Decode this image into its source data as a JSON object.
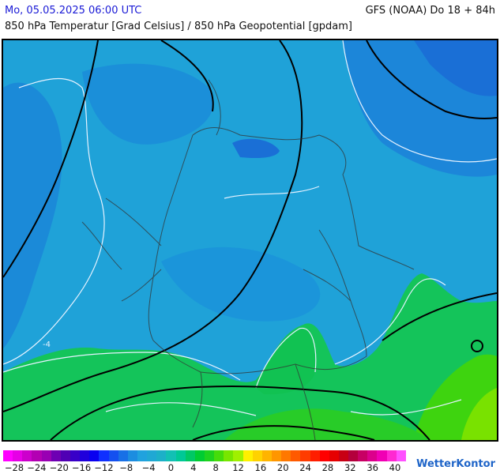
{
  "header": {
    "date": "Mo, 05.05.2025 06:00 UTC",
    "model": "GFS (NOAA) Do 18 + 84h",
    "title": "850 hPa Temperatur [Grad Celsius] / 850 hPa Geopotential [gpdam]"
  },
  "map": {
    "contour_label": "-4",
    "region": "Deutschland"
  },
  "legend": {
    "colors": [
      "#ff00ff",
      "#e600e6",
      "#cc00cc",
      "#b300b3",
      "#9900b3",
      "#6e00b3",
      "#5000b4",
      "#3800c8",
      "#2000dc",
      "#0a00f0",
      "#1030ff",
      "#1450f0",
      "#1870e6",
      "#1c8de0",
      "#20a2de",
      "#1fa8d4",
      "#1cb0c8",
      "#12c0b4",
      "#00c896",
      "#00c864",
      "#00cc32",
      "#1ed21e",
      "#46dc0a",
      "#78e600",
      "#a0f000",
      "#fff000",
      "#ffd200",
      "#ffb400",
      "#ff9600",
      "#ff7800",
      "#ff5a00",
      "#ff3c00",
      "#ff1e00",
      "#ff0000",
      "#e60000",
      "#c80014",
      "#b4003c",
      "#c80064",
      "#dc008c",
      "#f000b4",
      "#ff28d2",
      "#ff50ff"
    ],
    "labels": [
      "−28",
      "−24",
      "−20",
      "−16",
      "−12",
      "−8",
      "−4",
      "0",
      "4",
      "8",
      "12",
      "16",
      "20",
      "24",
      "28",
      "32",
      "36",
      "40"
    ]
  },
  "brand": "WetterKontor"
}
